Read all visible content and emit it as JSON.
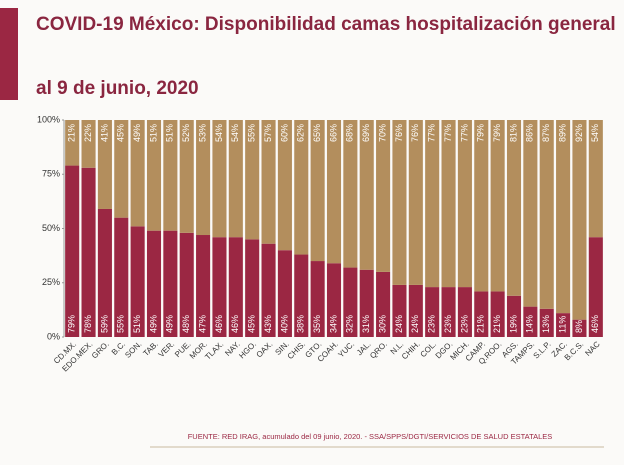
{
  "chart_data": {
    "type": "stacked_bar_100",
    "title": "COVID-19 México: Disponibilidad camas hospitalización general",
    "subtitle": "al 9 de junio, 2020",
    "source": "FUENTE: RED IRAG, acumulado del 09 junio, 2020. -   SSA/SPPS/DGTI/SERVICIOS DE SALUD ESTATALES",
    "categories": [
      "CD.MX.",
      "EDO.MEX.",
      "GRO.",
      "B.C.",
      "SON.",
      "TAB.",
      "VER.",
      "PUE.",
      "MOR.",
      "TLAX.",
      "NAY.",
      "HGO.",
      "OAX.",
      "SIN.",
      "CHIS.",
      "GTO.",
      "COAH.",
      "YUC.",
      "JAL.",
      "QRO.",
      "N.L.",
      "CHIH.",
      "COL.",
      "DGO.",
      "MICH.",
      "CAMP.",
      "Q.ROO.",
      "AGS.",
      "TAMPS.",
      "S.L.P.",
      "ZAC.",
      "B.C.S.",
      "NAC"
    ],
    "series": [
      {
        "color": "#9b2743",
        "values": [
          79,
          78,
          59,
          55,
          51,
          49,
          49,
          48,
          47,
          46,
          46,
          45,
          43,
          40,
          38,
          35,
          34,
          32,
          31,
          30,
          24,
          24,
          23,
          23,
          23,
          21,
          21,
          19,
          14,
          13,
          11,
          8,
          46
        ],
        "value_labels": [
          "79%",
          "78%",
          "59%",
          "55%",
          "51%",
          "49%",
          "49%",
          "48%",
          "47%",
          "46%",
          "46%",
          "45%",
          "43%",
          "40%",
          "38%",
          "35%",
          "34%",
          "32%",
          "31%",
          "30%",
          "24%",
          "24%",
          "23%",
          "23%",
          "23%",
          "21%",
          "21%",
          "19%",
          "14%",
          "13%",
          "11%",
          "8%",
          "46%"
        ]
      },
      {
        "color": "#b38e5d",
        "values": [
          21,
          22,
          41,
          45,
          49,
          51,
          51,
          52,
          53,
          54,
          54,
          55,
          57,
          60,
          62,
          65,
          66,
          68,
          69,
          70,
          76,
          76,
          77,
          77,
          77,
          79,
          79,
          81,
          86,
          87,
          89,
          92,
          54
        ],
        "value_labels": [
          "21%",
          "22%",
          "41%",
          "45%",
          "49%",
          "51%",
          "51%",
          "52%",
          "53%",
          "54%",
          "54%",
          "55%",
          "57%",
          "60%",
          "62%",
          "65%",
          "66%",
          "68%",
          "69%",
          "70%",
          "76%",
          "76%",
          "77%",
          "77%",
          "77%",
          "79%",
          "79%",
          "81%",
          "86%",
          "87%",
          "89%",
          "92%",
          "54%"
        ]
      }
    ],
    "ylim": [
      0,
      100
    ],
    "yticks": [
      {
        "value": 0,
        "label": "0%"
      },
      {
        "value": 25,
        "label": "25%"
      },
      {
        "value": 50,
        "label": "50%"
      },
      {
        "value": 75,
        "label": "75%"
      },
      {
        "value": 100,
        "label": "100%"
      }
    ],
    "grid": false
  }
}
